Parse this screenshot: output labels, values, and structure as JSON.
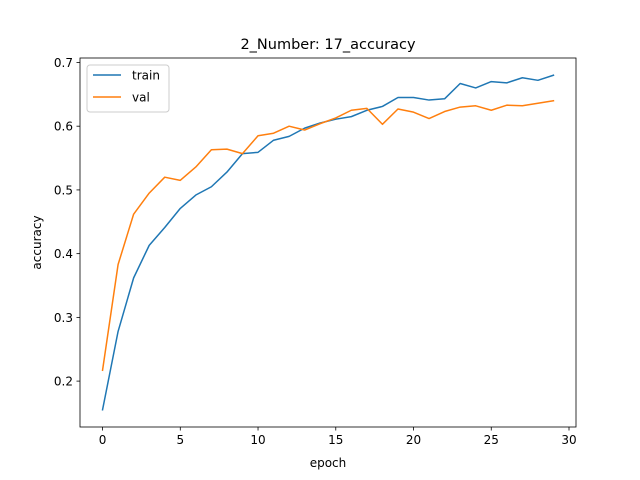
{
  "chart_data": {
    "type": "line",
    "title": "2_Number: 17_accuracy",
    "xlabel": "epoch",
    "ylabel": "accuracy",
    "xlim": [
      -1.45,
      30.45
    ],
    "ylim": [
      0.128,
      0.707
    ],
    "xticks": [
      0,
      5,
      10,
      15,
      20,
      25,
      30
    ],
    "yticks": [
      0.2,
      0.3,
      0.4,
      0.5,
      0.6,
      0.7
    ],
    "xtick_labels": [
      "0",
      "5",
      "10",
      "15",
      "20",
      "25",
      "30"
    ],
    "ytick_labels": [
      "0.2",
      "0.3",
      "0.4",
      "0.5",
      "0.6",
      "0.7"
    ],
    "grid": false,
    "legend_position": "upper-left",
    "x": [
      0,
      1,
      2,
      3,
      4,
      5,
      6,
      7,
      8,
      9,
      10,
      11,
      12,
      13,
      14,
      15,
      16,
      17,
      18,
      19,
      20,
      21,
      22,
      23,
      24,
      25,
      26,
      27,
      28,
      29
    ],
    "series": [
      {
        "name": "train",
        "color": "#1f77b4",
        "values": [
          0.155,
          0.278,
          0.362,
          0.413,
          0.441,
          0.471,
          0.492,
          0.505,
          0.528,
          0.557,
          0.559,
          0.578,
          0.584,
          0.597,
          0.605,
          0.611,
          0.615,
          0.625,
          0.631,
          0.645,
          0.645,
          0.641,
          0.643,
          0.667,
          0.66,
          0.67,
          0.668,
          0.676,
          0.672,
          0.68
        ]
      },
      {
        "name": "val",
        "color": "#ff7f0e",
        "values": [
          0.217,
          0.383,
          0.462,
          0.495,
          0.52,
          0.515,
          0.536,
          0.563,
          0.564,
          0.557,
          0.585,
          0.589,
          0.6,
          0.594,
          0.604,
          0.613,
          0.625,
          0.628,
          0.603,
          0.627,
          0.622,
          0.612,
          0.623,
          0.63,
          0.632,
          0.625,
          0.633,
          0.632,
          0.636,
          0.64
        ]
      }
    ]
  }
}
